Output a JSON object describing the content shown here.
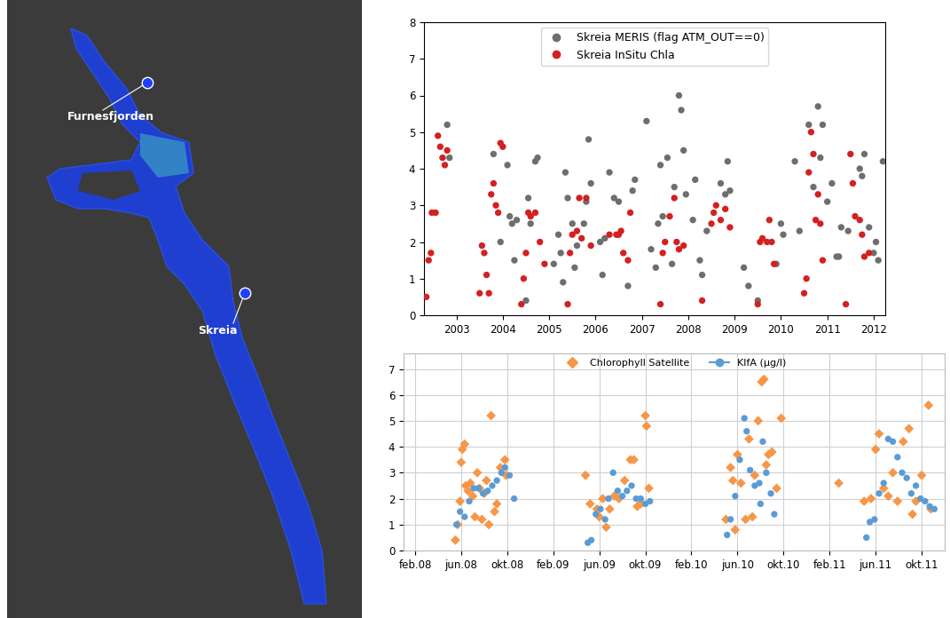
{
  "map": {
    "labels": [
      "Furnesfjorden",
      "Skreia"
    ]
  },
  "chart_data": [
    {
      "type": "scatter",
      "xlim": [
        2002.3,
        2012.25
      ],
      "xticks": [
        2003,
        2004,
        2005,
        2006,
        2007,
        2008,
        2009,
        2010,
        2011,
        2012
      ],
      "ylim": [
        0,
        8
      ],
      "yticks": [
        0,
        1,
        2,
        3,
        4,
        5,
        6,
        7,
        8
      ],
      "grid": false,
      "legend": "upper center",
      "series": [
        {
          "name": "Skreia MERIS (flag ATM_OUT==0)",
          "color": "#6e6e6e",
          "marker": "o",
          "x": [
            2002.8,
            2002.85,
            2003.8,
            2003.95,
            2004.1,
            2004.15,
            2004.2,
            2004.25,
            2004.3,
            2004.5,
            2004.55,
            2004.6,
            2004.7,
            2004.75,
            2005.1,
            2005.2,
            2005.25,
            2005.3,
            2005.35,
            2005.4,
            2005.5,
            2005.55,
            2005.6,
            2005.75,
            2005.8,
            2005.85,
            2005.9,
            2006.1,
            2006.15,
            2006.2,
            2006.3,
            2006.4,
            2006.5,
            2006.7,
            2006.8,
            2006.85,
            2007.1,
            2007.2,
            2007.3,
            2007.35,
            2007.4,
            2007.45,
            2007.55,
            2007.65,
            2007.7,
            2007.8,
            2007.85,
            2007.9,
            2007.95,
            2008.1,
            2008.15,
            2008.25,
            2008.3,
            2008.4,
            2008.7,
            2008.8,
            2008.85,
            2008.9,
            2009.2,
            2009.3,
            2009.5,
            2009.9,
            2010.0,
            2010.05,
            2010.3,
            2010.4,
            2010.6,
            2010.7,
            2010.8,
            2010.85,
            2010.9,
            2011.0,
            2011.1,
            2011.2,
            2011.25,
            2011.3,
            2011.45,
            2011.7,
            2011.75,
            2011.8,
            2011.9,
            2012.0,
            2012.05,
            2012.1,
            2012.2
          ],
          "values": [
            5.2,
            4.3,
            4.4,
            2.0,
            4.1,
            2.7,
            2.5,
            1.5,
            2.6,
            0.4,
            3.2,
            2.5,
            4.2,
            4.3,
            1.4,
            2.2,
            1.7,
            0.9,
            3.9,
            3.2,
            2.5,
            1.3,
            1.9,
            2.5,
            3.1,
            4.8,
            3.6,
            2.0,
            1.1,
            2.1,
            3.9,
            3.2,
            3.1,
            0.8,
            3.4,
            3.7,
            5.3,
            1.8,
            1.3,
            2.5,
            4.1,
            2.7,
            4.3,
            1.4,
            3.5,
            6.0,
            5.6,
            4.5,
            3.3,
            2.6,
            3.7,
            1.5,
            1.1,
            2.3,
            3.6,
            3.3,
            4.2,
            3.4,
            1.3,
            0.8,
            0.4,
            1.4,
            2.5,
            2.2,
            4.2,
            2.3,
            5.2,
            3.5,
            5.7,
            4.3,
            5.2,
            3.1,
            3.6,
            1.6,
            1.6,
            2.4,
            2.3,
            4.0,
            3.8,
            4.4,
            2.4,
            1.7,
            2.0,
            1.5,
            4.2
          ]
        },
        {
          "name": "Skreia InSitu Chla",
          "color": "#d42020",
          "marker": "o",
          "x": [
            2002.35,
            2002.4,
            2002.45,
            2002.47,
            2002.55,
            2002.6,
            2002.65,
            2002.7,
            2002.75,
            2002.8,
            2003.5,
            2003.55,
            2003.6,
            2003.65,
            2003.7,
            2003.75,
            2003.8,
            2003.85,
            2003.9,
            2003.95,
            2004.0,
            2004.4,
            2004.45,
            2004.5,
            2004.55,
            2004.6,
            2004.7,
            2004.8,
            2004.9,
            2005.4,
            2005.45,
            2005.5,
            2005.6,
            2005.65,
            2005.7,
            2005.8,
            2005.9,
            2006.3,
            2006.45,
            2006.5,
            2006.55,
            2006.6,
            2006.7,
            2006.75,
            2007.4,
            2007.45,
            2007.5,
            2007.6,
            2007.7,
            2007.75,
            2007.8,
            2007.9,
            2008.3,
            2008.5,
            2008.55,
            2008.6,
            2008.7,
            2008.8,
            2008.9,
            2009.5,
            2009.55,
            2009.6,
            2009.7,
            2009.75,
            2009.8,
            2009.85,
            2010.5,
            2010.55,
            2010.6,
            2010.65,
            2010.7,
            2010.75,
            2010.8,
            2010.85,
            2010.9,
            2011.4,
            2011.5,
            2011.55,
            2011.6,
            2011.7,
            2011.75,
            2011.8,
            2011.9
          ],
          "values": [
            0.5,
            1.5,
            1.7,
            2.8,
            2.8,
            4.9,
            4.6,
            4.3,
            4.1,
            4.5,
            0.6,
            1.9,
            1.7,
            1.1,
            0.6,
            3.3,
            3.6,
            3.0,
            2.8,
            4.7,
            4.6,
            0.3,
            1.0,
            1.7,
            2.8,
            2.7,
            2.8,
            2.0,
            1.4,
            0.3,
            1.7,
            2.2,
            2.3,
            3.2,
            2.1,
            3.2,
            1.9,
            2.2,
            2.2,
            2.2,
            2.3,
            1.7,
            1.5,
            2.8,
            0.3,
            1.7,
            2.0,
            2.7,
            3.2,
            2.0,
            1.8,
            1.9,
            0.4,
            2.5,
            2.8,
            3.0,
            2.6,
            2.9,
            2.4,
            0.3,
            2.0,
            2.1,
            2.0,
            2.6,
            2.0,
            1.4,
            0.6,
            1.0,
            3.9,
            5.0,
            4.4,
            2.6,
            3.3,
            2.5,
            1.5,
            0.3,
            4.4,
            3.6,
            2.7,
            2.6,
            2.2,
            1.6,
            1.7
          ]
        }
      ]
    },
    {
      "type": "scatter",
      "xlim": [
        1,
        48
      ],
      "xticks": [
        {
          "value": 2,
          "label": "feb.08"
        },
        {
          "value": 6,
          "label": "jun.08"
        },
        {
          "value": 10,
          "label": "okt.08"
        },
        {
          "value": 14,
          "label": "feb.09"
        },
        {
          "value": 18,
          "label": "jun.09"
        },
        {
          "value": 22,
          "label": "okt.09"
        },
        {
          "value": 26,
          "label": "feb.10"
        },
        {
          "value": 30,
          "label": "jun.10"
        },
        {
          "value": 34,
          "label": "okt.10"
        },
        {
          "value": 38,
          "label": "feb.11"
        },
        {
          "value": 42,
          "label": "jun.11"
        },
        {
          "value": 46,
          "label": "okt.11"
        }
      ],
      "ylim": [
        0,
        7.6
      ],
      "yticks": [
        0,
        1,
        2,
        3,
        4,
        5,
        6,
        7
      ],
      "grid": true,
      "legend": "upper center",
      "series": [
        {
          "name": "Chlorophyll Satellite",
          "color": "#f79646",
          "marker": "D",
          "line_style": "none",
          "x": [
            5.5,
            5.7,
            5.9,
            6.0,
            6.1,
            6.3,
            6.4,
            6.6,
            6.8,
            7.0,
            7.2,
            7.4,
            7.6,
            7.8,
            8.0,
            8.2,
            8.4,
            8.6,
            8.9,
            9.1,
            9.4,
            9.8,
            9.9,
            16.8,
            17.2,
            17.8,
            18.0,
            18.3,
            18.6,
            18.9,
            19.3,
            19.7,
            20.2,
            20.7,
            21.0,
            21.3,
            21.6,
            22.0,
            22.1,
            22.3,
            29.0,
            29.4,
            29.6,
            29.8,
            30.0,
            30.3,
            30.7,
            31.0,
            31.3,
            31.5,
            31.8,
            32.1,
            32.3,
            32.5,
            32.7,
            33.0,
            33.4,
            33.8,
            38.8,
            41.0,
            41.6,
            42.0,
            42.3,
            42.7,
            43.1,
            43.5,
            43.9,
            44.4,
            44.9,
            45.2,
            45.5,
            46.0,
            46.6,
            46.8
          ],
          "values": [
            0.4,
            1.0,
            1.9,
            3.4,
            3.9,
            4.1,
            2.5,
            2.3,
            2.6,
            2.1,
            1.3,
            3.0,
            2.4,
            1.2,
            2.2,
            2.7,
            1.0,
            5.2,
            1.5,
            1.8,
            3.2,
            3.5,
            2.9,
            2.9,
            1.8,
            1.6,
            1.3,
            2.0,
            0.9,
            1.6,
            2.1,
            2.0,
            2.7,
            3.5,
            3.5,
            1.7,
            1.8,
            5.2,
            4.8,
            2.4,
            1.2,
            3.2,
            2.7,
            0.8,
            3.7,
            2.6,
            1.2,
            4.3,
            1.3,
            2.9,
            5.0,
            6.5,
            6.6,
            3.3,
            3.7,
            3.8,
            2.4,
            5.1,
            2.6,
            1.9,
            2.0,
            3.9,
            4.5,
            2.4,
            2.1,
            3.0,
            1.9,
            4.2,
            4.7,
            1.4,
            1.9,
            2.9,
            5.6,
            1.6
          ]
        },
        {
          "name": "KlfA (µg/l)",
          "color": "#5b9bd5",
          "marker": "o",
          "line_style": "none",
          "x": [
            5.6,
            5.9,
            6.3,
            6.7,
            7.1,
            7.5,
            7.9,
            8.3,
            8.7,
            9.1,
            9.5,
            9.8,
            10.2,
            10.6,
            17.0,
            17.3,
            17.7,
            18.1,
            18.5,
            18.8,
            19.2,
            19.6,
            20.0,
            20.4,
            20.8,
            21.2,
            21.6,
            22.0,
            22.4,
            29.1,
            29.4,
            29.8,
            30.2,
            30.6,
            30.8,
            31.1,
            31.5,
            31.9,
            32.0,
            32.2,
            32.5,
            32.9,
            33.2,
            41.2,
            41.5,
            41.9,
            42.3,
            42.7,
            43.1,
            43.5,
            43.9,
            44.3,
            44.7,
            45.1,
            45.5,
            45.9,
            46.3,
            46.7,
            47.1
          ],
          "values": [
            1.0,
            1.5,
            1.3,
            1.9,
            2.4,
            2.4,
            2.2,
            2.3,
            2.5,
            2.7,
            3.0,
            3.2,
            2.9,
            2.0,
            0.3,
            0.4,
            1.4,
            1.6,
            1.2,
            2.0,
            3.0,
            2.3,
            2.1,
            2.3,
            2.5,
            2.0,
            2.0,
            1.8,
            1.9,
            0.6,
            1.2,
            2.1,
            3.5,
            5.1,
            4.6,
            3.1,
            2.5,
            2.6,
            1.8,
            4.2,
            3.0,
            2.2,
            1.4,
            0.5,
            1.1,
            1.2,
            2.2,
            2.6,
            4.3,
            4.2,
            3.6,
            3.0,
            2.8,
            2.2,
            2.5,
            2.0,
            1.9,
            1.7,
            1.6
          ]
        }
      ]
    }
  ]
}
